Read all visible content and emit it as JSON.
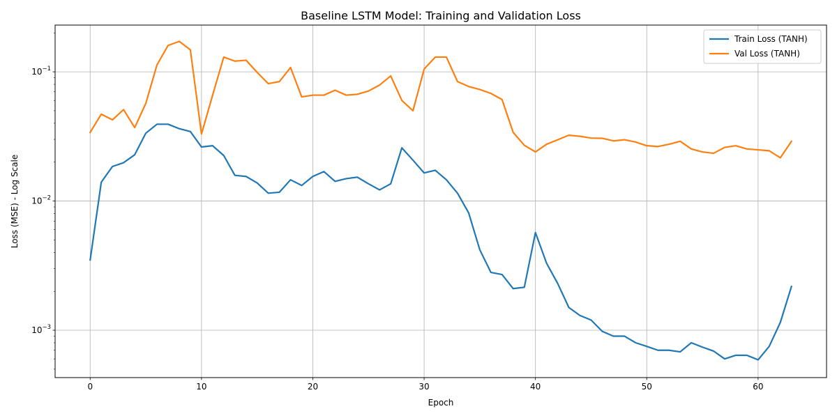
{
  "chart_data": {
    "type": "line",
    "title": "Baseline LSTM Model: Training and Validation Loss",
    "xlabel": "Epoch",
    "ylabel": "Loss (MSE) - Log Scale",
    "yscale": "log",
    "xlim": [
      -3.15,
      66.15
    ],
    "ylim": [
      0.00043,
      0.23
    ],
    "xticks": [
      0,
      10,
      20,
      30,
      40,
      50,
      60
    ],
    "xtick_labels": [
      "0",
      "10",
      "20",
      "30",
      "40",
      "50",
      "60"
    ],
    "yticks": [
      0.001,
      0.01,
      0.1
    ],
    "ytick_labels": [
      {
        "base": "10",
        "exp": "−3"
      },
      {
        "base": "10",
        "exp": "−2"
      },
      {
        "base": "10",
        "exp": "−1"
      }
    ],
    "grid": true,
    "legend_position": "upper-right",
    "series": [
      {
        "name": "Train Loss (TANH)",
        "color": "#1f77b4",
        "values": [
          0.0035,
          0.014,
          0.0185,
          0.0198,
          0.0228,
          0.0335,
          0.0393,
          0.0393,
          0.0363,
          0.0345,
          0.0262,
          0.0268,
          0.0225,
          0.0158,
          0.0155,
          0.0138,
          0.0115,
          0.0117,
          0.0146,
          0.0132,
          0.0155,
          0.0169,
          0.0142,
          0.0149,
          0.0153,
          0.0136,
          0.0122,
          0.0136,
          0.0258,
          0.0207,
          0.0165,
          0.0173,
          0.0146,
          0.0115,
          0.0081,
          0.0042,
          0.0028,
          0.0027,
          0.0021,
          0.00215,
          0.0057,
          0.0033,
          0.0023,
          0.0015,
          0.0013,
          0.0012,
          0.00098,
          0.0009,
          0.0009,
          0.0008,
          0.00075,
          0.0007,
          0.0007,
          0.00068,
          0.0008,
          0.00074,
          0.00069,
          0.0006,
          0.00064,
          0.00064,
          0.00059,
          0.00075,
          0.00115,
          0.00218
        ]
      },
      {
        "name": "Val Loss (TANH)",
        "color": "#ff7f0e",
        "values": [
          0.034,
          0.047,
          0.0425,
          0.051,
          0.037,
          0.057,
          0.113,
          0.16,
          0.172,
          0.148,
          0.033,
          0.066,
          0.13,
          0.121,
          0.123,
          0.099,
          0.081,
          0.084,
          0.108,
          0.064,
          0.066,
          0.066,
          0.072,
          0.066,
          0.067,
          0.071,
          0.079,
          0.093,
          0.06,
          0.05,
          0.105,
          0.13,
          0.13,
          0.084,
          0.077,
          0.073,
          0.068,
          0.061,
          0.034,
          0.027,
          0.024,
          0.0275,
          0.0298,
          0.0323,
          0.0317,
          0.0307,
          0.0306,
          0.0292,
          0.0298,
          0.0286,
          0.0268,
          0.0264,
          0.0275,
          0.029,
          0.0253,
          0.024,
          0.0234,
          0.026,
          0.0268,
          0.0253,
          0.0249,
          0.0245,
          0.0216,
          0.029
        ]
      }
    ]
  }
}
